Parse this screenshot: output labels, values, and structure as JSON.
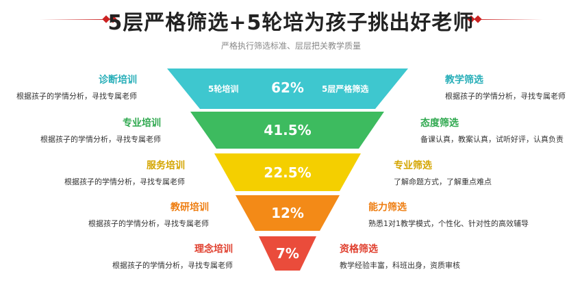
{
  "header": {
    "title": "5层严格筛选+5轮培为孩子挑出好老师",
    "subtitle": "严格执行筛选标准、层层把关教学质量"
  },
  "funnel": {
    "top_left_label": "5轮培训",
    "top_right_label": "5层严格筛选",
    "layers": [
      {
        "percent": "62%",
        "color": "#3ec7cf"
      },
      {
        "percent": "41.5%",
        "color": "#3dbb5f"
      },
      {
        "percent": "22.5%",
        "color": "#f4cf00"
      },
      {
        "percent": "12%",
        "color": "#f38a17"
      },
      {
        "percent": "7%",
        "color": "#ea4c3b"
      }
    ]
  },
  "left_items": [
    {
      "title": "诊断培训",
      "desc": "根据孩子的学情分析，寻找专属老师",
      "color": "#27aeb8"
    },
    {
      "title": "专业培训",
      "desc": "根据孩子的学情分析，寻找专属老师",
      "color": "#2ea84e"
    },
    {
      "title": "服务培训",
      "desc": "根据孩子的学情分析，寻找专属老师",
      "color": "#d4a500"
    },
    {
      "title": "教研培训",
      "desc": "根据孩子的学情分析，寻找专属老师",
      "color": "#ee7d10"
    },
    {
      "title": "理念培训",
      "desc": "根据孩子的学情分析，寻找专属老师",
      "color": "#e0402f"
    }
  ],
  "right_items": [
    {
      "title": "教学筛选",
      "desc": "根据孩子的学情分析，寻找专属老师",
      "color": "#27aeb8"
    },
    {
      "title": "态度筛选",
      "desc": "备课认真，教案认真，试听好评，认真负责",
      "color": "#2ea84e"
    },
    {
      "title": "专业筛选",
      "desc": "了解命题方式，了解重点难点",
      "color": "#d4a500"
    },
    {
      "title": "能力筛选",
      "desc": "熟悉1对1教学模式，个性化、针对性的高效辅导",
      "color": "#ee7d10"
    },
    {
      "title": "资格筛选",
      "desc": "教学经验丰富，科班出身，资质审核",
      "color": "#e0402f"
    }
  ]
}
